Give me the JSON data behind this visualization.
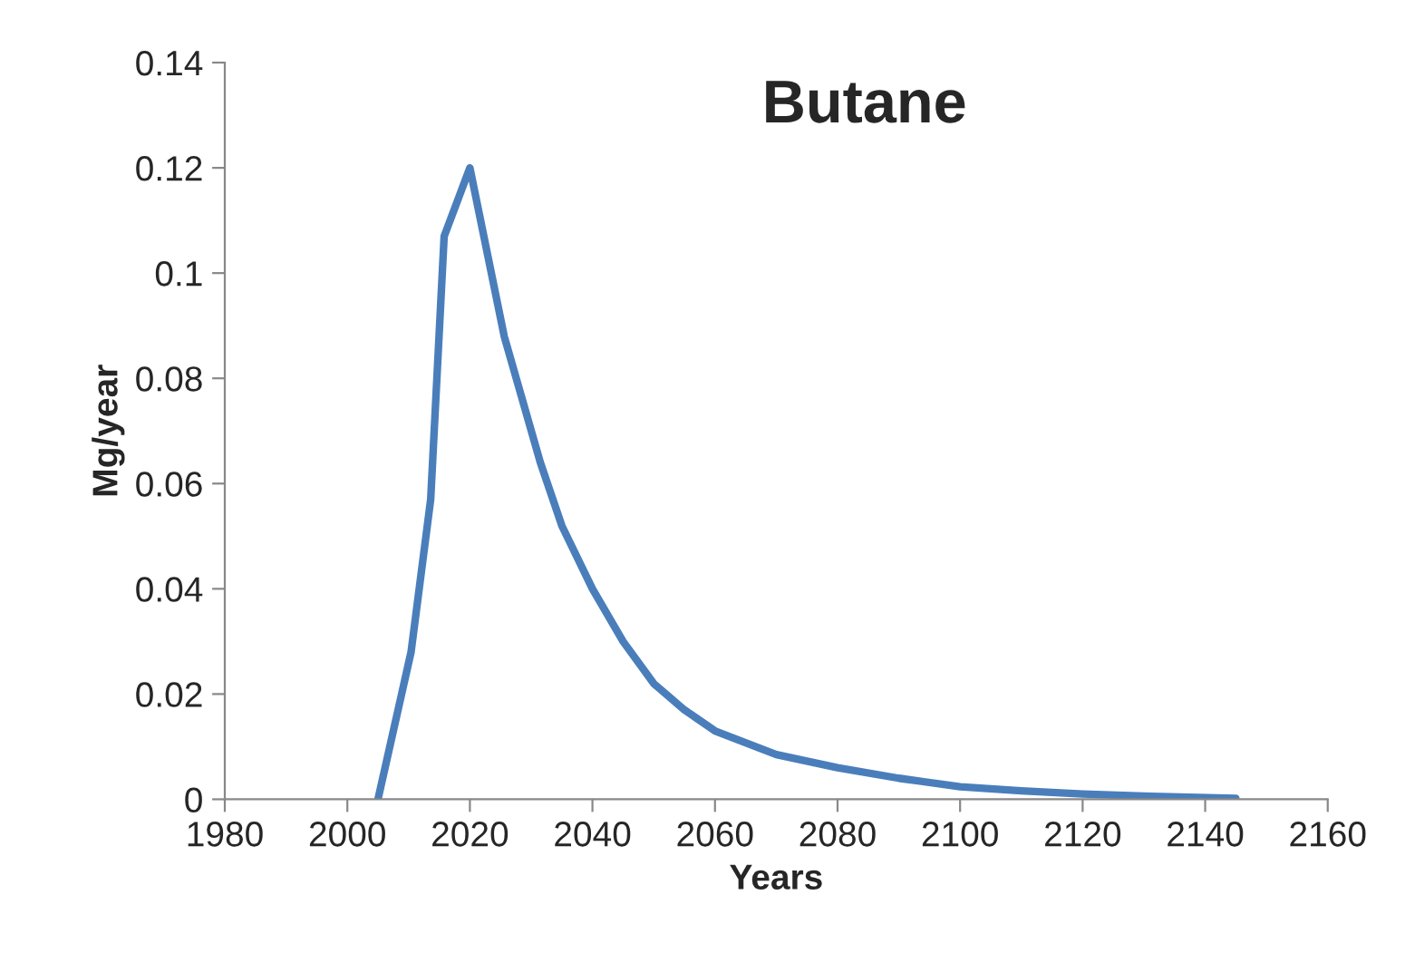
{
  "chart_data": {
    "type": "line",
    "title": "Butane",
    "xlabel": "Years",
    "ylabel": "Mg/year",
    "x": [
      2005,
      2010.4,
      2013.6,
      2015.8,
      2020,
      2025.6,
      2031.5,
      2035,
      2040,
      2045,
      2050,
      2055,
      2060,
      2070,
      2080,
      2090,
      2100,
      2110,
      2120,
      2130,
      2145
    ],
    "series": [
      {
        "color": "#4a7ebb",
        "values": [
          0,
          0.028,
          0.057,
          0.107,
          0.12,
          0.088,
          0.064,
          0.052,
          0.04,
          0.03,
          0.022,
          0.017,
          0.013,
          0.0085,
          0.006,
          0.004,
          0.0024,
          0.0016,
          0.001,
          0.0006,
          0.0002
        ]
      }
    ],
    "xlim": [
      1980,
      2160
    ],
    "xticks": [
      1980,
      2000,
      2020,
      2040,
      2060,
      2080,
      2100,
      2120,
      2140,
      2160
    ],
    "ylim": [
      0,
      0.14
    ],
    "yticks": [
      0,
      0.02,
      0.04,
      0.06,
      0.08,
      0.1,
      0.12,
      0.14
    ],
    "grid": false,
    "legend": false,
    "marker": "none",
    "line_style": "solid"
  }
}
